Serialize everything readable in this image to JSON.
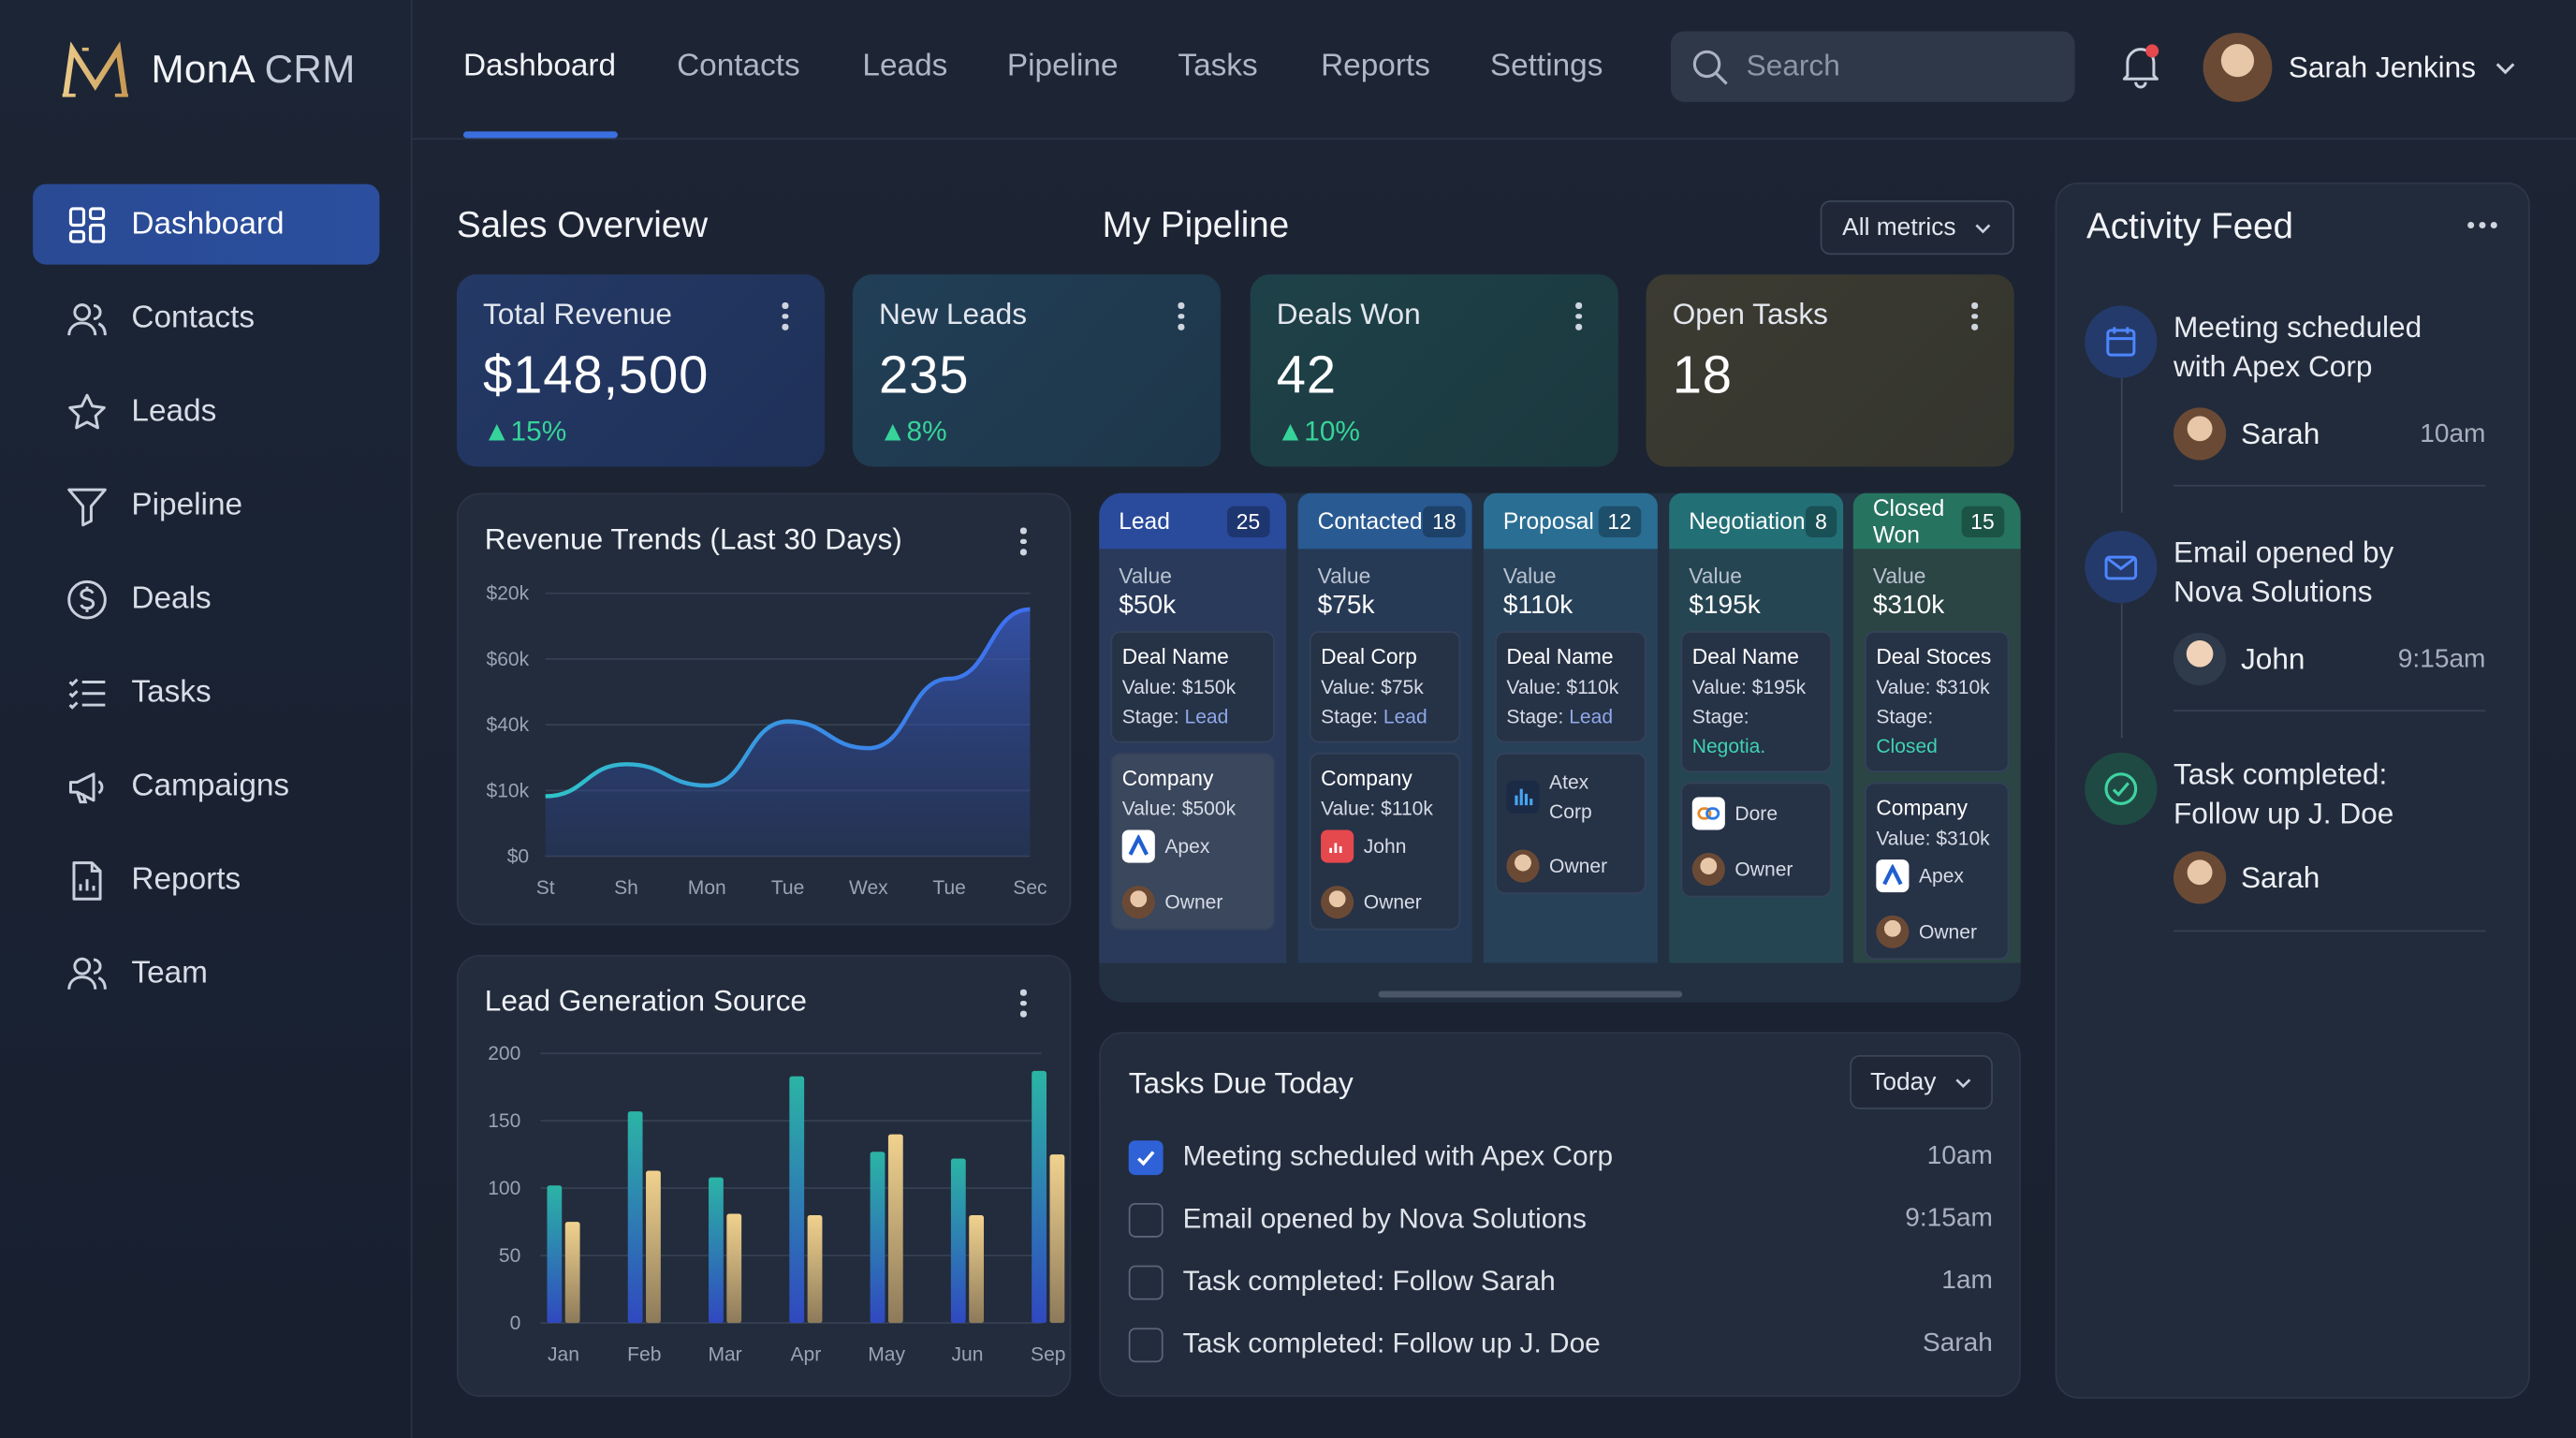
{
  "brand": {
    "name_a": "MonA",
    "name_b": "CRM"
  },
  "sidebar": {
    "items": [
      {
        "label": "Dashboard",
        "icon": "grid-icon",
        "active": true
      },
      {
        "label": "Contacts",
        "icon": "users-icon"
      },
      {
        "label": "Leads",
        "icon": "star-icon"
      },
      {
        "label": "Pipeline",
        "icon": "funnel-icon"
      },
      {
        "label": "Deals",
        "icon": "dollar-icon"
      },
      {
        "label": "Tasks",
        "icon": "list-icon"
      },
      {
        "label": "Campaigns",
        "icon": "megaphone-icon"
      },
      {
        "label": "Reports",
        "icon": "report-icon"
      },
      {
        "label": "Team",
        "icon": "team-icon"
      }
    ]
  },
  "topnav": {
    "tabs": [
      "Dashboard",
      "Contacts",
      "Leads",
      "Pipeline",
      "Tasks",
      "Reports",
      "Settings"
    ],
    "active": "Dashboard"
  },
  "search": {
    "placeholder": "Search"
  },
  "user": {
    "name": "Sarah Jenkins"
  },
  "sales_overview": {
    "title": "Sales Overview"
  },
  "pipeline_title": "My Pipeline",
  "metrics_dropdown": "All metrics",
  "kpis": [
    {
      "label": "Total Revenue",
      "value": "$148,500",
      "change": "15%",
      "color": "#22345f"
    },
    {
      "label": "New Leads",
      "value": "235",
      "change": "8%",
      "color": "#1f3b4f"
    },
    {
      "label": "Deals Won",
      "value": "42",
      "change": "10%",
      "color": "#1c3d44"
    },
    {
      "label": "Open Tasks",
      "value": "18",
      "change": "",
      "color": "#3a3a33"
    }
  ],
  "revenue_chart": {
    "title": "Revenue Trends (Last 30 Days)",
    "chart_data": {
      "type": "area",
      "x_labels": [
        "St",
        "Sh",
        "Mon",
        "Tue",
        "Wex",
        "Tue",
        "Sec"
      ],
      "y_labels": [
        "$20k",
        "$60k",
        "$40k",
        "$10k",
        "$0"
      ],
      "values": [
        0.2,
        0.8,
        0.4,
        1.6,
        1.1,
        2.4,
        3.7
      ]
    }
  },
  "lead_chart": {
    "title": "Lead Generation Source",
    "chart_data": {
      "type": "bar",
      "categories": [
        "Jan",
        "Feb",
        "Mar",
        "Apr",
        "May",
        "Jun",
        "Sep"
      ],
      "y_ticks": [
        "200",
        "150",
        "100",
        "50",
        "0"
      ],
      "ylim": [
        0,
        200
      ],
      "series": [
        {
          "values": [
            102,
            157,
            108,
            183,
            127,
            122,
            187
          ]
        },
        {
          "values": [
            75,
            113,
            81,
            80,
            140,
            80,
            125
          ]
        }
      ]
    }
  },
  "pipeline": {
    "columns": [
      {
        "stage": "Lead",
        "count": "25",
        "value": "$50k",
        "color": "#2a4b9c",
        "deal": {
          "name": "Deal Name",
          "value": "Value: $150k",
          "stage": "Lead"
        },
        "company": {
          "name": "Company",
          "value": "Value: $500k",
          "logo": "Apex",
          "owner": "Owner"
        }
      },
      {
        "stage": "Contacted",
        "count": "18",
        "value": "$75k",
        "color": "#295a91",
        "deal": {
          "name": "Deal Corp",
          "value": "Value: $75k",
          "stage": "Lead"
        },
        "company": {
          "name": "Company",
          "value": "Value: $110k",
          "logo": "John",
          "owner": "Owner"
        }
      },
      {
        "stage": "Proposal",
        "count": "12",
        "value": "$110k",
        "color": "#2a6e93",
        "deal": {
          "name": "Deal Name",
          "value": "Value: $110k",
          "stage": "Lead"
        },
        "company": {
          "logo": "Atex Corp",
          "owner": "Owner"
        }
      },
      {
        "stage": "Negotiation",
        "count": "8",
        "value": "$195k",
        "color": "#236f76",
        "deal": {
          "name": "Deal Name",
          "value": "Value: $195k",
          "stage": "Negotia."
        },
        "company": {
          "logo": "Dore",
          "owner": "Owner"
        }
      },
      {
        "stage": "Closed Won",
        "count": "15",
        "value": "$310k",
        "color": "#26735f",
        "deal": {
          "name": "Deal Stoces",
          "value": "Value: $310k",
          "stage": "Closed"
        },
        "company": {
          "name": "Company",
          "value": "Value: $310k",
          "logo": "Apex",
          "owner": "Owner"
        }
      }
    ],
    "value_label": "Value",
    "stage_label": "Stage:"
  },
  "tasks": {
    "title": "Tasks Due Today",
    "filter": "Today",
    "items": [
      {
        "text": "Meeting scheduled with Apex Corp",
        "time": "10am",
        "checked": true
      },
      {
        "text": "Email opened by Nova Solutions",
        "time": "9:15am",
        "checked": false
      },
      {
        "text": "Task completed: Follow Sarah",
        "time": "1am",
        "checked": false
      },
      {
        "text": "Task completed: Follow up J. Doe",
        "time": "Sarah",
        "checked": false
      }
    ]
  },
  "activity": {
    "title": "Activity Feed",
    "items": [
      {
        "line1": "Meeting scheduled",
        "line2": "with Apex Corp",
        "user": "Sarah",
        "time": "10am",
        "icon": "calendar-icon"
      },
      {
        "line1": "Email opened by",
        "line2": "Nova Solutions",
        "user": "John",
        "time": "9:15am",
        "icon": "mail-icon"
      },
      {
        "line1": "Task completed:",
        "line2": "Follow up J. Doe",
        "user": "Sarah",
        "time": "",
        "icon": "check-icon"
      }
    ]
  }
}
